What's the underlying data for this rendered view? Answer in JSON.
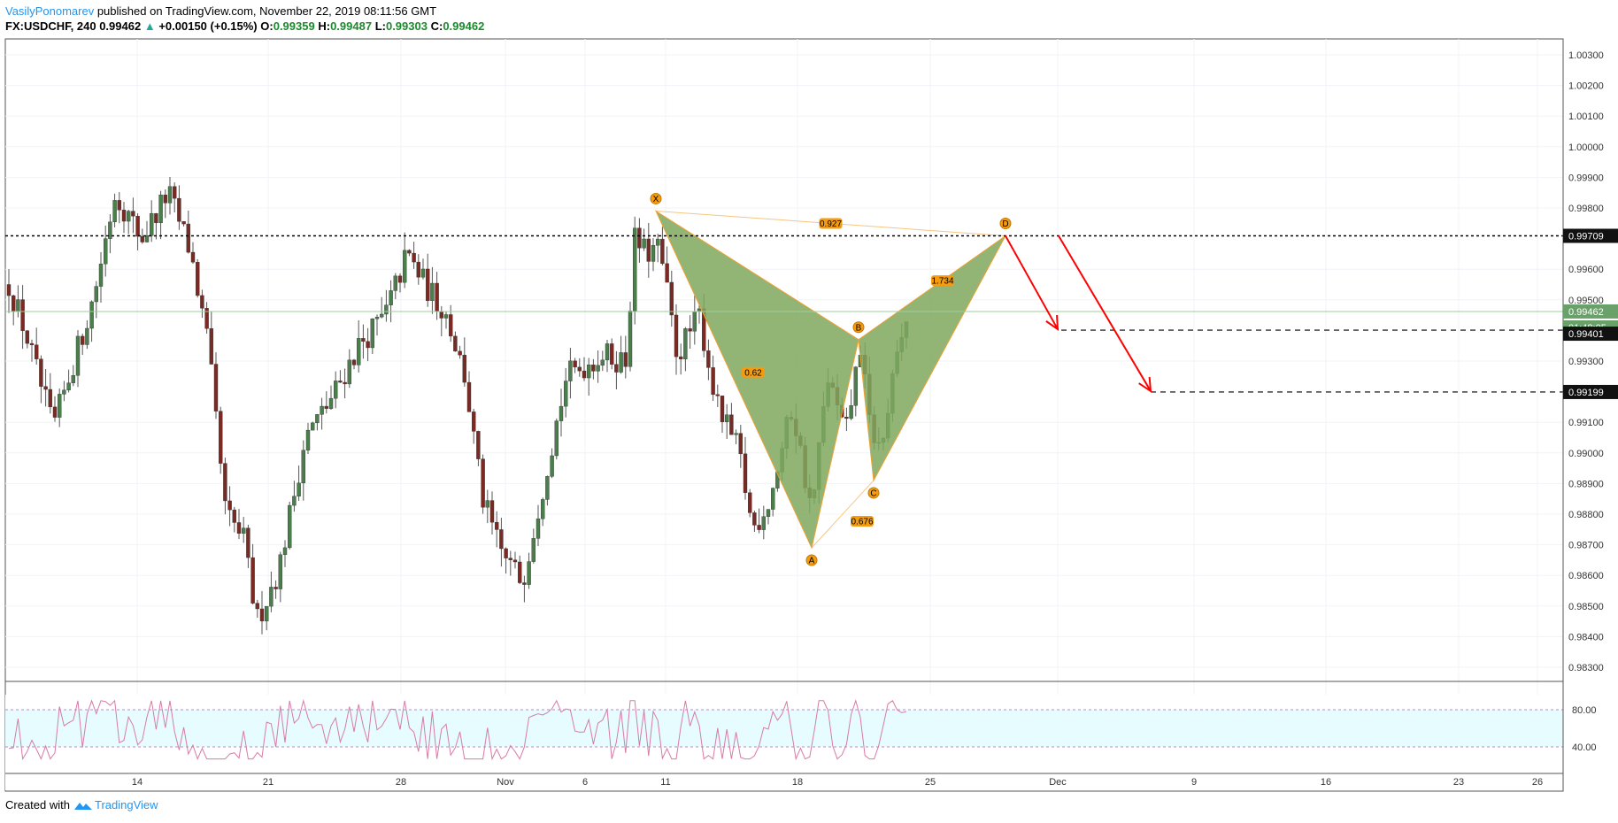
{
  "header": {
    "author": "VasilyPonomarev",
    "published_text": "published on TradingView.com, November 22, 2019 08:11:56 GMT",
    "symbol": "FX:USDCHF, 240",
    "last": "0.99462",
    "change": "+0.00150 (+0.15%)",
    "o_label": "O:",
    "o_value": "0.99359",
    "h_label": "H:",
    "h_value": "0.99487",
    "l_label": "L:",
    "l_value": "0.99303",
    "c_label": "C:",
    "c_value": "0.99462"
  },
  "footer": {
    "created_with": "Created with",
    "brand": "TradingView"
  },
  "colors": {
    "up": "#4a7f4c",
    "down": "#7a2a22",
    "pattern_fill": "#7fa85e",
    "pattern_line": "#f0a030",
    "arrow": "#ff0000",
    "rsi_line": "#d77ba6",
    "rsi_band": "#e6fcff"
  },
  "chart_data": {
    "type": "candlestick",
    "instrument": "FX:USDCHF",
    "timeframe": "240",
    "price_axis": {
      "ticks": [
        "1.00300",
        "1.00200",
        "1.00100",
        "1.00000",
        "0.99900",
        "0.99800",
        "0.99600",
        "0.99500",
        "0.99300",
        "0.99100",
        "0.99000",
        "0.98900",
        "0.98800",
        "0.98700",
        "0.98600",
        "0.98500",
        "0.98400",
        "0.98300"
      ],
      "range": [
        0.9826,
        1.0034
      ]
    },
    "time_axis": {
      "ticks": [
        "14",
        "21",
        "28",
        "Nov",
        "6",
        "11",
        "18",
        "25",
        "Dec",
        "9",
        "16",
        "23",
        "26"
      ]
    },
    "price_labels": [
      {
        "text": "0.99709",
        "style": "black"
      },
      {
        "text": "0.99462",
        "style": "green"
      },
      {
        "text": "01:48:05",
        "style": "green"
      },
      {
        "text": "0.99401",
        "style": "black"
      },
      {
        "text": "0.99199",
        "style": "black"
      }
    ],
    "horizontal_lines": [
      {
        "price": 0.99709,
        "style": "dotted"
      },
      {
        "price": 0.99401,
        "style": "dashed"
      },
      {
        "price": 0.99199,
        "style": "dashed"
      }
    ],
    "pattern": {
      "points": [
        {
          "label": "X",
          "price": 0.9979
        },
        {
          "label": "A",
          "price": 0.9869
        },
        {
          "label": "B",
          "price": 0.9937
        },
        {
          "label": "C",
          "price": 0.9891
        },
        {
          "label": "D",
          "price": 0.99709
        }
      ],
      "ratios": [
        "0.927",
        "0.62",
        "1.734",
        "0.676"
      ]
    },
    "rsi": {
      "levels": [
        "80.00",
        "40.00"
      ],
      "upper": 80,
      "lower": 40
    }
  }
}
